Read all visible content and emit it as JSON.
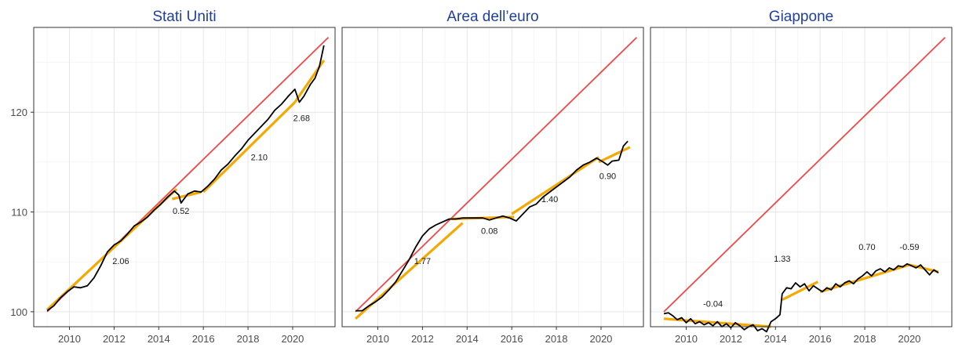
{
  "colors": {
    "title": "#1f3f9e",
    "trend_line": "#f04848",
    "segment_fit": "#f5a800",
    "series_line": "#000000",
    "tick_text": "#4d4d4d"
  },
  "chart_data": [
    {
      "type": "line",
      "title": "Stati Uniti",
      "xlim": [
        2008.4,
        2021.9
      ],
      "ylim": [
        98.5,
        128.5
      ],
      "x_ticks": [
        "2010",
        "2012",
        "2014",
        "2016",
        "2018",
        "2020"
      ],
      "y_ticks": [
        "100",
        "110",
        "120"
      ],
      "grid": true,
      "trend": [
        [
          2009.0,
          100.0
        ],
        [
          2021.6,
          127.5
        ]
      ],
      "series": [
        [
          2009.0,
          100.1
        ],
        [
          2009.3,
          100.6
        ],
        [
          2009.6,
          101.4
        ],
        [
          2009.9,
          102.0
        ],
        [
          2010.2,
          102.5
        ],
        [
          2010.5,
          102.4
        ],
        [
          2010.8,
          102.6
        ],
        [
          2011.1,
          103.4
        ],
        [
          2011.4,
          104.6
        ],
        [
          2011.7,
          106.0
        ],
        [
          2012.0,
          106.7
        ],
        [
          2012.3,
          107.1
        ],
        [
          2012.6,
          107.8
        ],
        [
          2012.9,
          108.6
        ],
        [
          2013.2,
          109.0
        ],
        [
          2013.5,
          109.5
        ],
        [
          2013.8,
          110.2
        ],
        [
          2014.1,
          110.8
        ],
        [
          2014.4,
          111.5
        ],
        [
          2014.7,
          112.1
        ],
        [
          2014.9,
          111.7
        ],
        [
          2015.0,
          110.9
        ],
        [
          2015.3,
          111.8
        ],
        [
          2015.6,
          112.1
        ],
        [
          2015.9,
          112.0
        ],
        [
          2016.2,
          112.6
        ],
        [
          2016.5,
          113.3
        ],
        [
          2016.8,
          114.2
        ],
        [
          2017.1,
          114.8
        ],
        [
          2017.4,
          115.6
        ],
        [
          2017.7,
          116.3
        ],
        [
          2018.0,
          117.2
        ],
        [
          2018.3,
          117.9
        ],
        [
          2018.6,
          118.6
        ],
        [
          2018.9,
          119.3
        ],
        [
          2019.2,
          120.2
        ],
        [
          2019.5,
          120.8
        ],
        [
          2019.8,
          121.6
        ],
        [
          2020.1,
          122.3
        ],
        [
          2020.3,
          121.0
        ],
        [
          2020.5,
          121.6
        ],
        [
          2020.8,
          122.8
        ],
        [
          2021.0,
          123.4
        ],
        [
          2021.2,
          124.6
        ],
        [
          2021.4,
          126.7
        ]
      ],
      "segments": [
        {
          "x": [
            2009.0,
            2014.8
          ],
          "y": [
            100.2,
            112.3
          ],
          "label": "2.06",
          "label_pos": [
            2012.3,
            104.8
          ]
        },
        {
          "x": [
            2014.6,
            2015.9
          ],
          "y": [
            111.3,
            112.0
          ],
          "label": "0.52",
          "label_pos": [
            2015.0,
            109.8
          ]
        },
        {
          "x": [
            2016.0,
            2020.1
          ],
          "y": [
            112.0,
            121.0
          ],
          "label": "2.10",
          "label_pos": [
            2018.5,
            115.2
          ]
        },
        {
          "x": [
            2020.1,
            2021.4
          ],
          "y": [
            121.0,
            125.2
          ],
          "label": "2.68",
          "label_pos": [
            2020.4,
            119.1
          ]
        }
      ]
    },
    {
      "type": "line",
      "title": "Area dell’euro",
      "xlim": [
        2008.4,
        2021.9
      ],
      "ylim": [
        98.5,
        128.5
      ],
      "x_ticks": [
        "2010",
        "2012",
        "2014",
        "2016",
        "2018",
        "2020"
      ],
      "y_ticks": [
        "100",
        "110",
        "120"
      ],
      "grid": true,
      "trend": [
        [
          2009.0,
          100.0
        ],
        [
          2021.6,
          127.5
        ]
      ],
      "series": [
        [
          2009.0,
          100.1
        ],
        [
          2009.3,
          100.1
        ],
        [
          2009.6,
          100.6
        ],
        [
          2009.9,
          101.0
        ],
        [
          2010.2,
          101.5
        ],
        [
          2010.5,
          102.2
        ],
        [
          2010.8,
          103.0
        ],
        [
          2011.1,
          104.1
        ],
        [
          2011.4,
          105.2
        ],
        [
          2011.7,
          106.5
        ],
        [
          2012.0,
          107.6
        ],
        [
          2012.3,
          108.3
        ],
        [
          2012.6,
          108.7
        ],
        [
          2012.9,
          109.0
        ],
        [
          2013.2,
          109.3
        ],
        [
          2013.5,
          109.3
        ],
        [
          2013.8,
          109.4
        ],
        [
          2014.1,
          109.4
        ],
        [
          2014.4,
          109.4
        ],
        [
          2014.7,
          109.4
        ],
        [
          2015.0,
          109.2
        ],
        [
          2015.3,
          109.4
        ],
        [
          2015.6,
          109.6
        ],
        [
          2015.9,
          109.4
        ],
        [
          2016.2,
          109.1
        ],
        [
          2016.5,
          109.8
        ],
        [
          2016.8,
          110.5
        ],
        [
          2017.1,
          110.8
        ],
        [
          2017.4,
          111.5
        ],
        [
          2017.7,
          112.0
        ],
        [
          2018.0,
          112.5
        ],
        [
          2018.3,
          113.0
        ],
        [
          2018.6,
          113.5
        ],
        [
          2018.9,
          114.2
        ],
        [
          2019.2,
          114.7
        ],
        [
          2019.5,
          115.0
        ],
        [
          2019.8,
          115.4
        ],
        [
          2020.1,
          115.0
        ],
        [
          2020.3,
          114.7
        ],
        [
          2020.5,
          115.1
        ],
        [
          2020.8,
          115.2
        ],
        [
          2021.0,
          116.6
        ],
        [
          2021.2,
          117.1
        ]
      ],
      "segments": [
        {
          "x": [
            2009.0,
            2013.8
          ],
          "y": [
            99.3,
            108.9
          ],
          "label": "1.77",
          "label_pos": [
            2012.0,
            104.8
          ]
        },
        {
          "x": [
            2013.3,
            2016.1
          ],
          "y": [
            109.3,
            109.5
          ],
          "label": "0.08",
          "label_pos": [
            2015.0,
            107.8
          ]
        },
        {
          "x": [
            2016.0,
            2019.9
          ],
          "y": [
            109.8,
            115.5
          ],
          "label": "1.40",
          "label_pos": [
            2017.7,
            111.0
          ]
        },
        {
          "x": [
            2019.9,
            2021.3
          ],
          "y": [
            115.0,
            116.5
          ],
          "label": "0.90",
          "label_pos": [
            2020.3,
            113.3
          ]
        }
      ]
    },
    {
      "type": "line",
      "title": "Giappone",
      "xlim": [
        2008.4,
        2021.9
      ],
      "ylim": [
        98.5,
        128.5
      ],
      "x_ticks": [
        "2010",
        "2012",
        "2014",
        "2016",
        "2018",
        "2020"
      ],
      "y_ticks": [
        "100",
        "110",
        "120"
      ],
      "grid": true,
      "trend": [
        [
          2009.0,
          100.0
        ],
        [
          2021.6,
          127.5
        ]
      ],
      "series": [
        [
          2009.0,
          99.8
        ],
        [
          2009.2,
          99.9
        ],
        [
          2009.4,
          99.6
        ],
        [
          2009.6,
          99.2
        ],
        [
          2009.8,
          99.4
        ],
        [
          2010.0,
          98.9
        ],
        [
          2010.2,
          99.3
        ],
        [
          2010.4,
          98.8
        ],
        [
          2010.6,
          99.0
        ],
        [
          2010.8,
          98.7
        ],
        [
          2011.0,
          98.9
        ],
        [
          2011.2,
          98.6
        ],
        [
          2011.4,
          99.0
        ],
        [
          2011.6,
          98.5
        ],
        [
          2011.8,
          98.8
        ],
        [
          2012.0,
          98.4
        ],
        [
          2012.2,
          98.9
        ],
        [
          2012.4,
          98.6
        ],
        [
          2012.6,
          98.2
        ],
        [
          2012.8,
          98.5
        ],
        [
          2013.0,
          98.7
        ],
        [
          2013.2,
          98.1
        ],
        [
          2013.4,
          98.3
        ],
        [
          2013.6,
          98.0
        ],
        [
          2013.8,
          99.0
        ],
        [
          2014.0,
          99.3
        ],
        [
          2014.2,
          99.7
        ],
        [
          2014.3,
          101.8
        ],
        [
          2014.5,
          102.4
        ],
        [
          2014.7,
          102.3
        ],
        [
          2014.9,
          102.9
        ],
        [
          2015.1,
          102.5
        ],
        [
          2015.3,
          102.8
        ],
        [
          2015.5,
          102.1
        ],
        [
          2015.7,
          102.6
        ],
        [
          2015.9,
          102.3
        ],
        [
          2016.1,
          102.0
        ],
        [
          2016.3,
          102.4
        ],
        [
          2016.5,
          102.2
        ],
        [
          2016.7,
          102.8
        ],
        [
          2016.9,
          102.5
        ],
        [
          2017.1,
          102.9
        ],
        [
          2017.3,
          103.1
        ],
        [
          2017.5,
          102.8
        ],
        [
          2017.7,
          103.3
        ],
        [
          2017.9,
          103.6
        ],
        [
          2018.1,
          104.0
        ],
        [
          2018.3,
          103.6
        ],
        [
          2018.5,
          104.1
        ],
        [
          2018.7,
          104.3
        ],
        [
          2018.9,
          104.0
        ],
        [
          2019.1,
          104.4
        ],
        [
          2019.3,
          104.2
        ],
        [
          2019.5,
          104.6
        ],
        [
          2019.7,
          104.5
        ],
        [
          2019.9,
          104.8
        ],
        [
          2020.1,
          104.6
        ],
        [
          2020.3,
          104.4
        ],
        [
          2020.5,
          104.7
        ],
        [
          2020.7,
          104.2
        ],
        [
          2020.9,
          103.7
        ],
        [
          2021.1,
          104.2
        ],
        [
          2021.3,
          103.9
        ]
      ],
      "segments": [
        {
          "x": [
            2009.0,
            2013.8
          ],
          "y": [
            99.3,
            98.5
          ],
          "label": "-0.04",
          "label_pos": [
            2011.2,
            100.5
          ]
        },
        {
          "x": [
            2014.3,
            2015.9
          ],
          "y": [
            101.2,
            103.0
          ],
          "label": "1.33",
          "label_pos": [
            2014.3,
            105.0
          ]
        },
        {
          "x": [
            2016.0,
            2020.0
          ],
          "y": [
            102.0,
            104.7
          ],
          "label": "0.70",
          "label_pos": [
            2018.1,
            106.2
          ]
        },
        {
          "x": [
            2020.0,
            2021.3
          ],
          "y": [
            104.7,
            104.0
          ],
          "label": "-0.59",
          "label_pos": [
            2020.0,
            106.2
          ]
        }
      ]
    }
  ]
}
